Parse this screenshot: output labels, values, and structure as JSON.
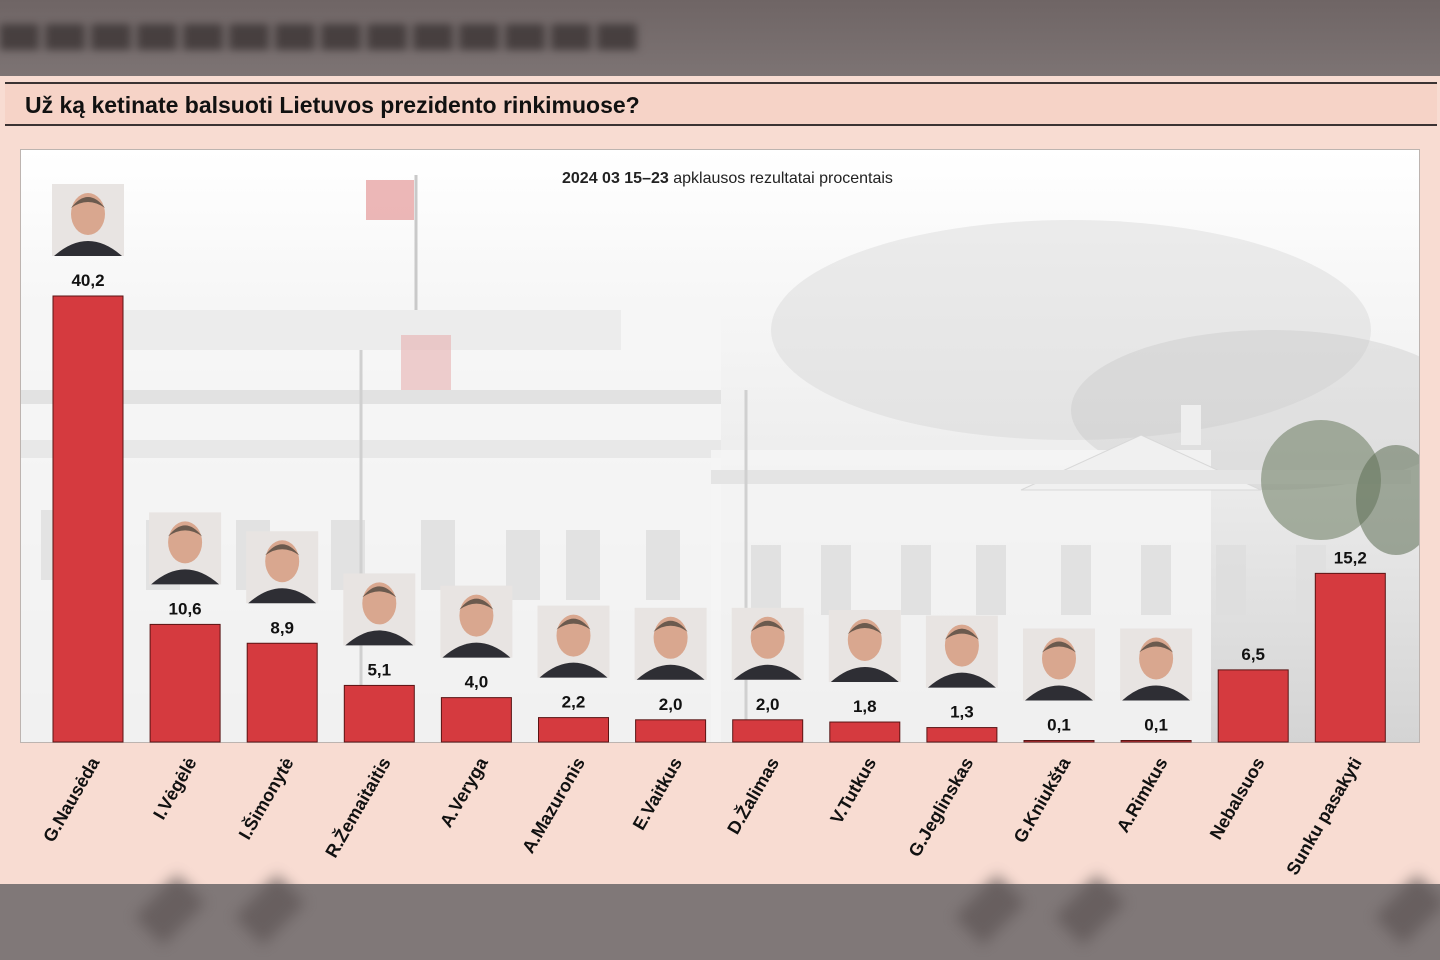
{
  "title": "Už ką ketinate balsuoti Lietuvos prezidento rinkimuose?",
  "subtitle_bold": "2024 03 15–23",
  "subtitle_rest": "apklausos rezultatai procentais",
  "colors": {
    "bar": "#d53a3f",
    "bar_edge": "#5a1414",
    "panel": "#f8dcd2"
  },
  "chart_data": {
    "type": "bar",
    "title": "Už ką ketinate balsuoti Lietuvos prezidento rinkimuose?",
    "subtitle": "2024 03 15–23 apklausos rezultatai procentais",
    "categories": [
      "G.Nausėda",
      "I.Vėgėlė",
      "I.Šimonytė",
      "R.Žemaitaitis",
      "A.Veryga",
      "A.Mazuronis",
      "E.Vaitkus",
      "D.Žalimas",
      "V.Tutkus",
      "G.Jeglinskas",
      "G.Kniukšta",
      "A.Rimkus",
      "Nebalsuos",
      "Sunku pasakyti"
    ],
    "values": [
      40.2,
      10.6,
      8.9,
      5.1,
      4.0,
      2.2,
      2.0,
      2.0,
      1.8,
      1.3,
      0.1,
      0.1,
      6.5,
      15.2
    ],
    "value_labels": [
      "40,2",
      "10,6",
      "8,9",
      "5,1",
      "4,0",
      "2,2",
      "2,0",
      "2,0",
      "1,8",
      "1,3",
      "0,1",
      "0,1",
      "6,5",
      "15,2"
    ],
    "has_portrait": [
      true,
      true,
      true,
      true,
      true,
      true,
      true,
      true,
      true,
      true,
      true,
      true,
      false,
      false
    ],
    "ylim": [
      0,
      40.2
    ],
    "grid": false,
    "legend": "none"
  }
}
